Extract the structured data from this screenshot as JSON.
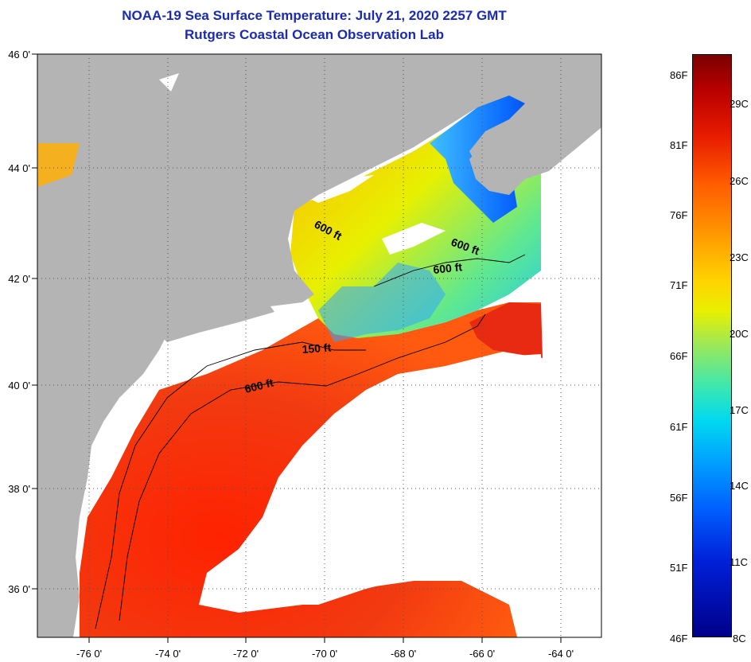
{
  "title": {
    "line1": "NOAA-19 Sea Surface Temperature:  July 21, 2020 2257 GMT",
    "line2": "Rutgers Coastal Ocean Observation Lab"
  },
  "map": {
    "lat_labels": [
      "46 0'",
      "44 0'",
      "42 0'",
      "40 0'",
      "38 0'",
      "36 0'"
    ],
    "lon_labels": [
      "-76 0'",
      "-74 0'",
      "-72 0'",
      "-70 0'",
      "-68 0'",
      "-66 0'",
      "-64 0'"
    ],
    "contour_labels": [
      "600 ft",
      "600 ft",
      "600 ft",
      "150 ft",
      "600 ft"
    ],
    "colors": {
      "land": "#b4b4b4",
      "cloud": "#ffffff",
      "warm": "#e8300a",
      "cool": "#1a6af0"
    }
  },
  "colorbar": {
    "fahrenheit": [
      "86F",
      "81F",
      "76F",
      "71F",
      "66F",
      "61F",
      "56F",
      "51F",
      "46F"
    ],
    "celsius": [
      "29C",
      "26C",
      "23C",
      "20C",
      "17C",
      "14C",
      "11C",
      "8C"
    ]
  }
}
